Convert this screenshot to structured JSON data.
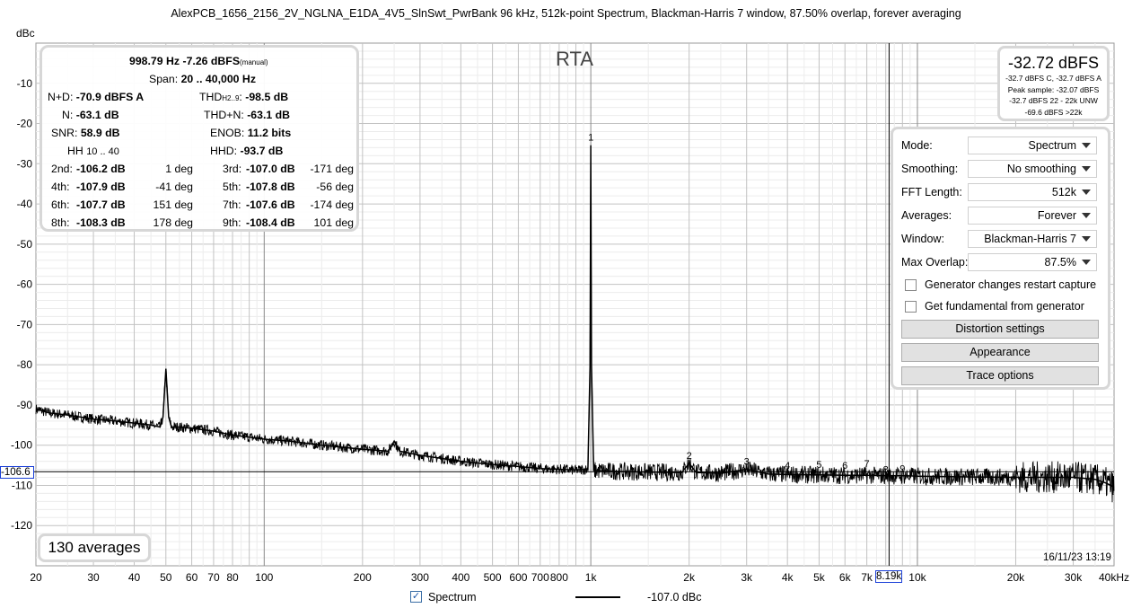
{
  "title": "AlexPCB_1656_2156_2V_NGLNA_E1DA_4V5_SlnSwt_PwrBank 96 kHz, 512k-point Spectrum, Blackman-Harris 7 window, 87.50% overlap, forever averaging",
  "chart_data": {
    "type": "line",
    "title": "AlexPCB_1656_2156_2V_NGLNA_E1DA_4V5_SlnSwt_PwrBank 96 kHz, 512k-point Spectrum, Blackman-Harris 7 window, 87.50% overlap, forever averaging",
    "ylabel": "dBc",
    "xlabel": "",
    "x_scale": "log",
    "xlim": [
      20,
      40000
    ],
    "ylim": [
      -130,
      0
    ],
    "grid": true,
    "overlay_label": "RTA",
    "y_ticks": [
      -10,
      -20,
      -30,
      -40,
      -50,
      -60,
      -70,
      -80,
      -90,
      -100,
      -110,
      -120
    ],
    "x_ticks": [
      {
        "v": 20,
        "l": "20"
      },
      {
        "v": 30,
        "l": "30"
      },
      {
        "v": 40,
        "l": "40"
      },
      {
        "v": 50,
        "l": "50"
      },
      {
        "v": 60,
        "l": "60"
      },
      {
        "v": 70,
        "l": "70"
      },
      {
        "v": 80,
        "l": "80"
      },
      {
        "v": 100,
        "l": "100"
      },
      {
        "v": 200,
        "l": "200"
      },
      {
        "v": 300,
        "l": "300"
      },
      {
        "v": 400,
        "l": "400"
      },
      {
        "v": 500,
        "l": "500"
      },
      {
        "v": 600,
        "l": "600"
      },
      {
        "v": 700,
        "l": "700"
      },
      {
        "v": 800,
        "l": "800"
      },
      {
        "v": 1000,
        "l": "1k"
      },
      {
        "v": 2000,
        "l": "2k"
      },
      {
        "v": 3000,
        "l": "3k"
      },
      {
        "v": 4000,
        "l": "4k"
      },
      {
        "v": 5000,
        "l": "5k"
      },
      {
        "v": 6000,
        "l": "6k"
      },
      {
        "v": 7000,
        "l": "7k"
      },
      {
        "v": 10000,
        "l": "10k"
      },
      {
        "v": 20000,
        "l": "20k"
      },
      {
        "v": 30000,
        "l": "30k"
      },
      {
        "v": 40000,
        "l": "40kHz"
      }
    ],
    "series": [
      {
        "name": "Spectrum",
        "color": "#000000",
        "x": [
          20,
          22,
          25,
          30,
          35,
          40,
          45,
          48,
          49,
          50,
          51,
          52,
          55,
          60,
          70,
          80,
          90,
          100,
          120,
          150,
          200,
          240,
          250,
          260,
          300,
          400,
          500,
          600,
          700,
          800,
          900,
          980,
          995,
          1000,
          1005,
          1020,
          1200,
          1500,
          1900,
          2000,
          2100,
          2500,
          3000,
          3500,
          4000,
          5000,
          6000,
          7000,
          8000,
          9000,
          10000,
          12000,
          15000,
          20000,
          25000,
          30000,
          35000,
          38000,
          40000
        ],
        "y": [
          -91,
          -92,
          -92.5,
          -93.5,
          -94,
          -94.5,
          -95,
          -95.5,
          -93,
          -81,
          -93,
          -95.5,
          -95.5,
          -95.8,
          -96.5,
          -97.5,
          -98,
          -98.5,
          -99,
          -100,
          -101,
          -101.5,
          -99,
          -101.5,
          -102.5,
          -104,
          -104.8,
          -105.3,
          -105.8,
          -106,
          -106.2,
          -106,
          -80,
          -25.4,
          -80,
          -106.3,
          -106.5,
          -106.7,
          -106.8,
          -104.5,
          -106.8,
          -107,
          -106,
          -107.2,
          -107.3,
          -107.4,
          -107.5,
          -107.5,
          -107.6,
          -107.6,
          -107.7,
          -107.8,
          -107.9,
          -108,
          -108,
          -108,
          -108.5,
          -109.5,
          -110.5
        ]
      }
    ],
    "harmonic_markers": [
      {
        "label": "1",
        "x": 1000,
        "y": -25.4
      },
      {
        "label": "2",
        "x": 2000,
        "y": -104.5
      },
      {
        "label": "3",
        "x": 3000,
        "y": -106
      },
      {
        "label": "4",
        "x": 4000,
        "y": -107
      },
      {
        "label": "5",
        "x": 5000,
        "y": -106.8
      },
      {
        "label": "6",
        "x": 6000,
        "y": -107
      },
      {
        "label": "7",
        "x": 7000,
        "y": -106.5
      },
      {
        "label": "8",
        "x": 8000,
        "y": -108
      },
      {
        "label": "9",
        "x": 9000,
        "y": -107.8
      }
    ],
    "cursor": {
      "x": 8190,
      "y": -106.6,
      "x_label": "8.19k",
      "y_label": "-106.6"
    }
  },
  "stats": {
    "freq_level": "998.79 Hz  -7.26 dBFS",
    "manual": "(manual)",
    "span_label": "Span:",
    "span_value": "20 .. 40,000 Hz",
    "nd_label": "N+D:",
    "nd_value": "-70.9 dBFS A",
    "thd_label": "THD",
    "thd_sub": "H2..9",
    "thd_colon": ":",
    "thd_value": "-98.5 dB",
    "n_label": "N:",
    "n_value": "-63.1 dB",
    "thdn_label": "THD+N:",
    "thdn_value": "-63.1 dB",
    "snr_label": "SNR:",
    "snr_value": "58.9 dB",
    "enob_label": "ENOB:",
    "enob_value": "11.2 bits",
    "hh_label": "HH",
    "hh_value": "10 .. 40",
    "hhd_label": "HHD:",
    "hhd_value": "-93.7 dB",
    "harmonics": [
      {
        "n": "2nd:",
        "v": "-106.2 dB",
        "p": "1 deg",
        "n2": "3rd:",
        "v2": "-107.0 dB",
        "p2": "-171 deg"
      },
      {
        "n": "4th:",
        "v": "-107.9 dB",
        "p": "-41 deg",
        "n2": "5th:",
        "v2": "-107.8 dB",
        "p2": "-56 deg"
      },
      {
        "n": "6th:",
        "v": "-107.7 dB",
        "p": "151 deg",
        "n2": "7th:",
        "v2": "-107.6 dB",
        "p2": "-174 deg"
      },
      {
        "n": "8th:",
        "v": "-108.3 dB",
        "p": "178 deg",
        "n2": "9th:",
        "v2": "-108.4 dB",
        "p2": "101 deg"
      }
    ]
  },
  "level": {
    "main": "-32.72 dBFS",
    "line1": "-32.7 dBFS C, -32.7 dBFS A",
    "line2": "Peak sample: -32.07 dBFS",
    "line3": "-32.7 dBFS 22 - 22k UNW",
    "line4": "-69.6 dBFS >22k"
  },
  "settings": {
    "rows": [
      {
        "label": "Mode:",
        "value": "Spectrum"
      },
      {
        "label": "Smoothing:",
        "value": "No smoothing"
      },
      {
        "label": "FFT Length:",
        "value": "512k"
      },
      {
        "label": "Averages:",
        "value": "Forever"
      },
      {
        "label": "Window:",
        "value": "Blackman-Harris 7"
      },
      {
        "label": "Max Overlap:",
        "value": "87.5%"
      }
    ],
    "check1": "Generator changes restart capture",
    "check2": "Get fundamental from generator",
    "btn_distortion": "Distortion settings",
    "btn_appearance": "Appearance",
    "btn_trace": "Trace options"
  },
  "averages": "130 averages",
  "timestamp": "16/11/23 13:19",
  "legend": {
    "name": "Spectrum",
    "value": "-107.0 dBc",
    "check": "✓"
  }
}
